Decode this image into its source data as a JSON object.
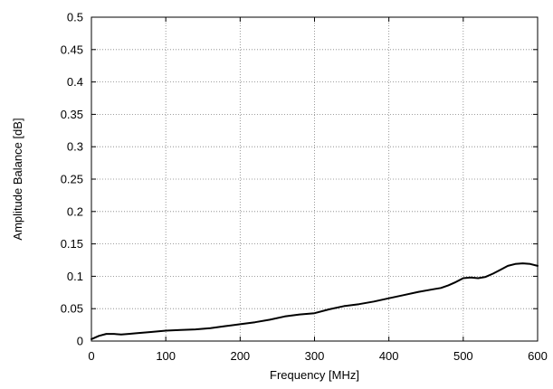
{
  "chart_data": {
    "type": "line",
    "title": "",
    "xlabel": "Frequency [MHz]",
    "ylabel": "Amplitude Balance [dB]",
    "xlim": [
      0,
      600
    ],
    "ylim": [
      0,
      0.5
    ],
    "x_ticks": [
      0,
      100,
      200,
      300,
      400,
      500,
      600
    ],
    "x_tick_labels": [
      "0",
      "100",
      "200",
      "300",
      "400",
      "500",
      "600"
    ],
    "y_ticks": [
      0,
      0.05,
      0.1,
      0.15,
      0.2,
      0.25,
      0.3,
      0.35,
      0.4,
      0.45,
      0.5
    ],
    "y_tick_labels": [
      "0",
      "0.05",
      "0.1",
      "0.15",
      "0.2",
      "0.25",
      "0.3",
      "0.35",
      "0.4",
      "0.45",
      "0.5"
    ],
    "grid": true,
    "grid_style": "dotted",
    "legend": "none",
    "series": [
      {
        "color": "#000000",
        "x": [
          0,
          10,
          20,
          30,
          40,
          50,
          60,
          80,
          100,
          120,
          140,
          160,
          180,
          200,
          220,
          240,
          260,
          280,
          300,
          320,
          340,
          360,
          380,
          400,
          420,
          440,
          460,
          470,
          480,
          490,
          500,
          510,
          520,
          530,
          540,
          550,
          560,
          570,
          580,
          590,
          600
        ],
        "y": [
          0.003,
          0.008,
          0.011,
          0.011,
          0.01,
          0.011,
          0.012,
          0.014,
          0.016,
          0.017,
          0.018,
          0.02,
          0.023,
          0.026,
          0.029,
          0.033,
          0.038,
          0.041,
          0.043,
          0.049,
          0.054,
          0.057,
          0.061,
          0.066,
          0.071,
          0.076,
          0.08,
          0.082,
          0.086,
          0.091,
          0.097,
          0.098,
          0.097,
          0.099,
          0.104,
          0.11,
          0.116,
          0.119,
          0.12,
          0.119,
          0.116
        ]
      }
    ]
  }
}
